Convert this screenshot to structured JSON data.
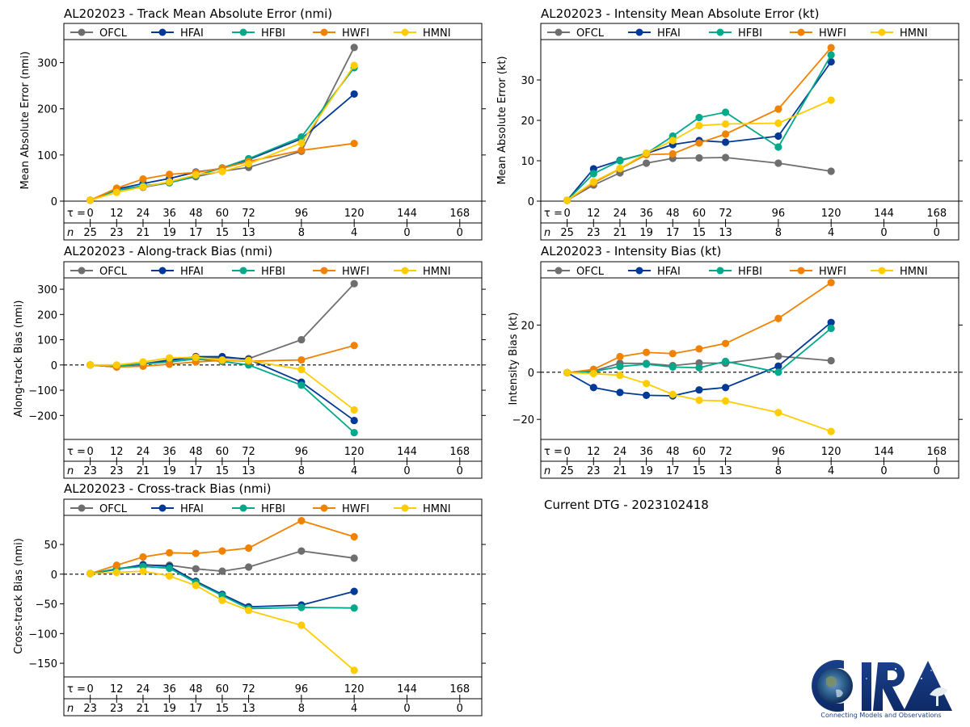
{
  "storm_id": "AL202023",
  "dtg_text": "Current DTG - 2023102418",
  "logo": {
    "text": "CIRA",
    "tagline": "Connecting Models and Observations"
  },
  "legend": [
    {
      "name": "OFCL",
      "color": "#6e6e6e"
    },
    {
      "name": "HFAI",
      "color": "#003a96"
    },
    {
      "name": "HFBI",
      "color": "#00a98a"
    },
    {
      "name": "HWFI",
      "color": "#f08200"
    },
    {
      "name": "HMNI",
      "color": "#ffcc00"
    }
  ],
  "tau_label": "τ = ",
  "n_label": "n",
  "chart_data": [
    {
      "id": "track-mae",
      "type": "line",
      "title": "AL202023 - Track Mean Absolute Error (nmi)",
      "xlabel": "",
      "ylabel": "Mean Absolute Error (nmi)",
      "x": [
        0,
        12,
        24,
        36,
        48,
        60,
        72,
        96,
        120
      ],
      "tau_ticks": [
        0,
        12,
        24,
        36,
        48,
        60,
        72,
        96,
        120,
        144,
        168
      ],
      "n_counts": [
        25,
        23,
        21,
        19,
        17,
        15,
        13,
        8,
        4,
        0,
        0
      ],
      "xlim": [
        -12,
        178
      ],
      "ylim": [
        0,
        350
      ],
      "yticks": [
        0,
        100,
        200,
        300
      ],
      "zero_line": false,
      "series": [
        {
          "name": "OFCL",
          "values": [
            2,
            24,
            30,
            40,
            53,
            65,
            73,
            108,
            333
          ]
        },
        {
          "name": "HFAI",
          "values": [
            2,
            26,
            38,
            49,
            63,
            71,
            90,
            135,
            232
          ]
        },
        {
          "name": "HFBI",
          "values": [
            2,
            24,
            33,
            40,
            55,
            72,
            92,
            139,
            289
          ]
        },
        {
          "name": "HWFI",
          "values": [
            2,
            28,
            48,
            58,
            62,
            71,
            86,
            110,
            125
          ]
        },
        {
          "name": "HMNI",
          "values": [
            2,
            19,
            31,
            42,
            57,
            64,
            81,
            126,
            294
          ]
        }
      ]
    },
    {
      "id": "intensity-mae",
      "type": "line",
      "title": "AL202023 - Intensity Mean Absolute Error (kt)",
      "xlabel": "",
      "ylabel": "Mean Absolute Error (kt)",
      "x": [
        0,
        12,
        24,
        36,
        48,
        60,
        72,
        96,
        120
      ],
      "tau_ticks": [
        0,
        12,
        24,
        36,
        48,
        60,
        72,
        96,
        120,
        144,
        168
      ],
      "n_counts": [
        25,
        23,
        21,
        19,
        17,
        15,
        13,
        8,
        4,
        0,
        0
      ],
      "xlim": [
        -12,
        178
      ],
      "ylim": [
        0,
        40
      ],
      "yticks": [
        0,
        10,
        20,
        30
      ],
      "zero_line": false,
      "series": [
        {
          "name": "OFCL",
          "values": [
            0.2,
            4.0,
            7.0,
            9.4,
            10.6,
            10.7,
            10.8,
            9.4,
            7.4
          ]
        },
        {
          "name": "HFAI",
          "values": [
            0.2,
            8.0,
            10.1,
            11.8,
            14.0,
            15.0,
            14.6,
            16.1,
            34.5
          ]
        },
        {
          "name": "HFBI",
          "values": [
            0.2,
            6.8,
            10.0,
            11.8,
            16.1,
            20.7,
            22.0,
            13.4,
            36.2
          ]
        },
        {
          "name": "HWFI",
          "values": [
            0.2,
            4.5,
            8.0,
            11.5,
            11.7,
            14.4,
            16.6,
            22.8,
            38.0
          ]
        },
        {
          "name": "HMNI",
          "values": [
            0.2,
            4.8,
            8.1,
            11.9,
            15.0,
            18.7,
            19.1,
            19.3,
            25.0
          ]
        }
      ]
    },
    {
      "id": "along-track-bias",
      "type": "line",
      "title": "AL202023 - Along-track Bias (nmi)",
      "xlabel": "",
      "ylabel": "Along-track Bias (nmi)",
      "x": [
        0,
        12,
        24,
        36,
        48,
        60,
        72,
        96,
        120
      ],
      "tau_ticks": [
        0,
        12,
        24,
        36,
        48,
        60,
        72,
        96,
        120,
        144,
        168
      ],
      "n_counts": [
        23,
        23,
        21,
        19,
        17,
        15,
        13,
        8,
        4,
        0,
        0
      ],
      "xlim": [
        -12,
        178
      ],
      "ylim": [
        -295,
        345
      ],
      "yticks": [
        -200,
        -100,
        0,
        100,
        200,
        300
      ],
      "zero_line": true,
      "series": [
        {
          "name": "OFCL",
          "values": [
            0,
            -3,
            5,
            20,
            30,
            28,
            25,
            100,
            322
          ]
        },
        {
          "name": "HFAI",
          "values": [
            0,
            -8,
            3,
            18,
            33,
            33,
            22,
            -68,
            -220
          ]
        },
        {
          "name": "HFBI",
          "values": [
            0,
            -5,
            4,
            12,
            24,
            14,
            0,
            -80,
            -268
          ]
        },
        {
          "name": "HWFI",
          "values": [
            0,
            -8,
            -5,
            3,
            12,
            18,
            15,
            20,
            77
          ]
        },
        {
          "name": "HMNI",
          "values": [
            0,
            0,
            12,
            28,
            30,
            20,
            18,
            -18,
            -178
          ]
        }
      ]
    },
    {
      "id": "intensity-bias",
      "type": "line",
      "title": "AL202023 - Intensity Bias (kt)",
      "xlabel": "",
      "ylabel": "Intensity Bias (kt)",
      "x": [
        0,
        12,
        24,
        36,
        48,
        60,
        72,
        96,
        120
      ],
      "tau_ticks": [
        0,
        12,
        24,
        36,
        48,
        60,
        72,
        96,
        120,
        144,
        168
      ],
      "n_counts": [
        25,
        23,
        21,
        19,
        17,
        15,
        13,
        8,
        4,
        0,
        0
      ],
      "xlim": [
        -12,
        178
      ],
      "ylim": [
        -28.5,
        40
      ],
      "yticks": [
        -20,
        0,
        20
      ],
      "zero_line": true,
      "series": [
        {
          "name": "OFCL",
          "values": [
            -0.2,
            0.5,
            3.8,
            3.7,
            2.8,
            3.9,
            3.8,
            6.8,
            4.9
          ]
        },
        {
          "name": "HFAI",
          "values": [
            -0.2,
            -6.5,
            -8.6,
            -9.8,
            -10.0,
            -7.5,
            -6.5,
            2.6,
            21.1
          ]
        },
        {
          "name": "HFBI",
          "values": [
            -0.2,
            0.3,
            2.4,
            3.4,
            2.2,
            1.9,
            4.6,
            0.0,
            18.6
          ]
        },
        {
          "name": "HWFI",
          "values": [
            -0.2,
            1.2,
            6.6,
            8.4,
            7.9,
            9.9,
            12.2,
            22.8,
            38.0
          ]
        },
        {
          "name": "HMNI",
          "values": [
            -0.2,
            -0.6,
            -1.3,
            -4.8,
            -9.4,
            -11.9,
            -12.2,
            -17.1,
            -25.1
          ]
        }
      ]
    },
    {
      "id": "cross-track-bias",
      "type": "line",
      "title": "AL202023 - Cross-track Bias (nmi)",
      "xlabel": "",
      "ylabel": "Cross-track Bias (nmi)",
      "x": [
        0,
        12,
        24,
        36,
        48,
        60,
        72,
        96,
        120
      ],
      "tau_ticks": [
        0,
        12,
        24,
        36,
        48,
        60,
        72,
        96,
        120,
        144,
        168
      ],
      "n_counts": [
        23,
        23,
        21,
        19,
        17,
        15,
        13,
        8,
        4,
        0,
        0
      ],
      "xlim": [
        -12,
        178
      ],
      "ylim": [
        -173,
        99
      ],
      "yticks": [
        -150,
        -100,
        -50,
        0,
        50
      ],
      "zero_line": true,
      "series": [
        {
          "name": "OFCL",
          "values": [
            1,
            9,
            15,
            15,
            9,
            5,
            12,
            39,
            27
          ]
        },
        {
          "name": "HFAI",
          "values": [
            1,
            8,
            16,
            13,
            -12,
            -34,
            -55,
            -52,
            -29
          ]
        },
        {
          "name": "HFBI",
          "values": [
            1,
            9,
            13,
            10,
            -14,
            -36,
            -58,
            -56,
            -57
          ]
        },
        {
          "name": "HWFI",
          "values": [
            1,
            15,
            29,
            36,
            35,
            39,
            44,
            90,
            63
          ]
        },
        {
          "name": "HMNI",
          "values": [
            1,
            3,
            5,
            -3,
            -19,
            -44,
            -61,
            -86,
            -162
          ]
        }
      ]
    }
  ]
}
